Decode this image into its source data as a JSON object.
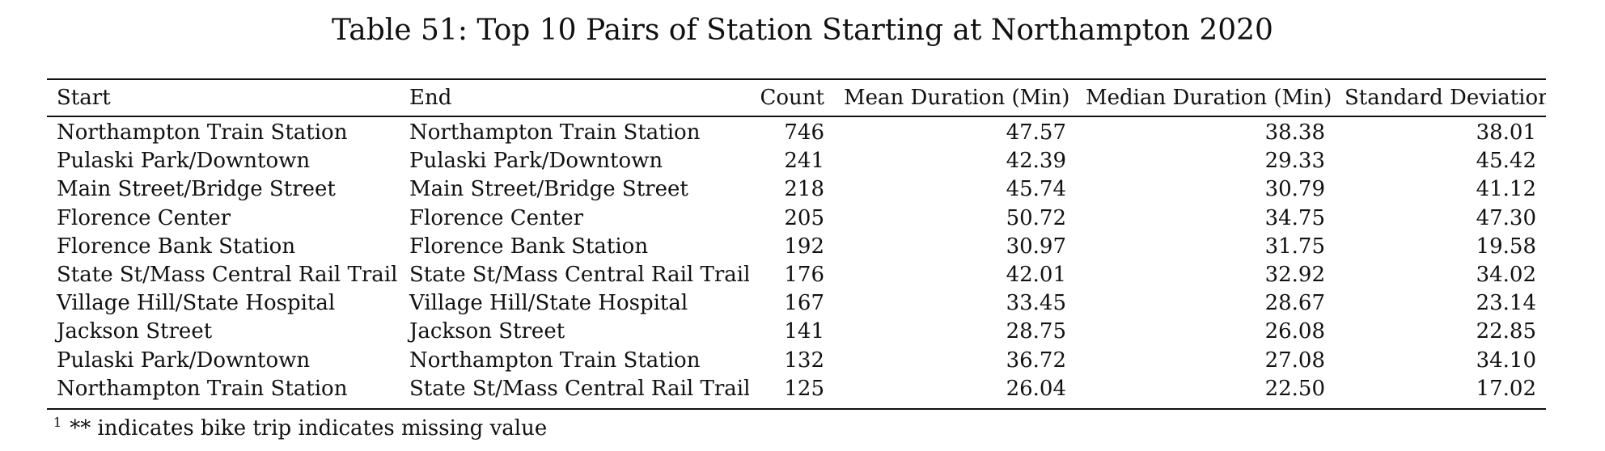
{
  "caption": "Table 51: Top 10 Pairs of Station Starting at Northampton 2020",
  "table": {
    "headers": [
      "Start",
      "End",
      "Count",
      "Mean Duration (Min)",
      "Median Duration (Min)",
      "Standard Deviation"
    ],
    "rows": [
      [
        "Northampton Train Station",
        "Northampton Train Station",
        "746",
        "47.57",
        "38.38",
        "38.01"
      ],
      [
        "Pulaski Park/Downtown",
        "Pulaski Park/Downtown",
        "241",
        "42.39",
        "29.33",
        "45.42"
      ],
      [
        "Main Street/Bridge Street",
        "Main Street/Bridge Street",
        "218",
        "45.74",
        "30.79",
        "41.12"
      ],
      [
        "Florence Center",
        "Florence Center",
        "205",
        "50.72",
        "34.75",
        "47.30"
      ],
      [
        "Florence Bank Station",
        "Florence Bank Station",
        "192",
        "30.97",
        "31.75",
        "19.58"
      ],
      [
        "State St/Mass Central Rail Trail",
        "State St/Mass Central Rail Trail",
        "176",
        "42.01",
        "32.92",
        "34.02"
      ],
      [
        "Village Hill/State Hospital",
        "Village Hill/State Hospital",
        "167",
        "33.45",
        "28.67",
        "23.14"
      ],
      [
        "Jackson Street",
        "Jackson Street",
        "141",
        "28.75",
        "26.08",
        "22.85"
      ],
      [
        "Pulaski Park/Downtown",
        "Northampton Train Station",
        "132",
        "36.72",
        "27.08",
        "34.10"
      ],
      [
        "Northampton Train Station",
        "State St/Mass Central Rail Trail",
        "125",
        "26.04",
        "22.50",
        "17.02"
      ]
    ]
  },
  "footnote": {
    "marker": "1",
    "text": "** indicates bike trip indicates missing value"
  }
}
